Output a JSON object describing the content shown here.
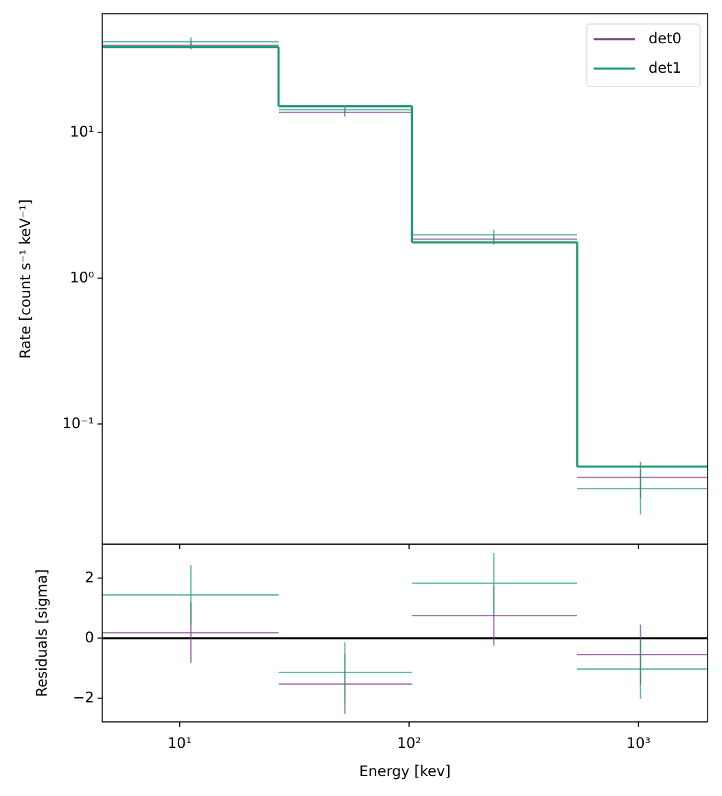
{
  "chart_data": [
    {
      "type": "spectrum",
      "ylabel": "Rate [count s⁻¹ keV⁻¹]",
      "xlog": true,
      "ylog": true,
      "xlim": [
        4.6,
        2000
      ],
      "ylim": [
        0.015,
        65
      ],
      "yticks": [
        {
          "value": 0.1,
          "label": "10⁻¹"
        },
        {
          "value": 1,
          "label": "10⁰"
        },
        {
          "value": 10,
          "label": "10¹"
        }
      ],
      "bins": [
        4.6,
        27,
        103,
        540,
        2000
      ],
      "x": [
        11.2,
        52.5,
        234,
        1020
      ],
      "legend": "upper right",
      "series": [
        {
          "name": "det0",
          "color": "#7b3c84",
          "model": [
            38.4,
            15.1,
            1.76,
            0.051
          ],
          "values": [
            39.5,
            13.7,
            1.85,
            0.043
          ],
          "errors": [
            2.5,
            0.9,
            0.15,
            0.012
          ]
        },
        {
          "name": "det1",
          "color": "#1b9e77",
          "model": [
            38.4,
            15.1,
            1.76,
            0.051
          ],
          "values": [
            41.8,
            14.3,
            1.98,
            0.036
          ],
          "errors": [
            3,
            1,
            0.17,
            0.012
          ]
        }
      ]
    },
    {
      "type": "residuals",
      "xlabel": "Energy [kev]",
      "ylabel": "Residuals [sigma]",
      "xlog": true,
      "xlim": [
        4.6,
        2000
      ],
      "ylim": [
        -2.79,
        3.13
      ],
      "xticks": [
        {
          "value": 10,
          "label": "10¹"
        },
        {
          "value": 100,
          "label": "10²"
        },
        {
          "value": 1000,
          "label": "10³"
        }
      ],
      "yticks": [
        {
          "value": -2,
          "label": "−2"
        },
        0,
        2
      ],
      "reference_line": 0,
      "bins": [
        4.6,
        27,
        103,
        540,
        2000
      ],
      "x": [
        11.2,
        52.5,
        234,
        1020
      ],
      "series": [
        {
          "color": "#7b3c84",
          "values": [
            0.18,
            -1.53,
            0.75,
            -0.55
          ],
          "errors": [
            1,
            1,
            1,
            1
          ]
        },
        {
          "color": "#1b9e77",
          "values": [
            1.44,
            -1.14,
            1.83,
            -1.03
          ],
          "errors": [
            1,
            1,
            1,
            1
          ]
        }
      ]
    }
  ]
}
